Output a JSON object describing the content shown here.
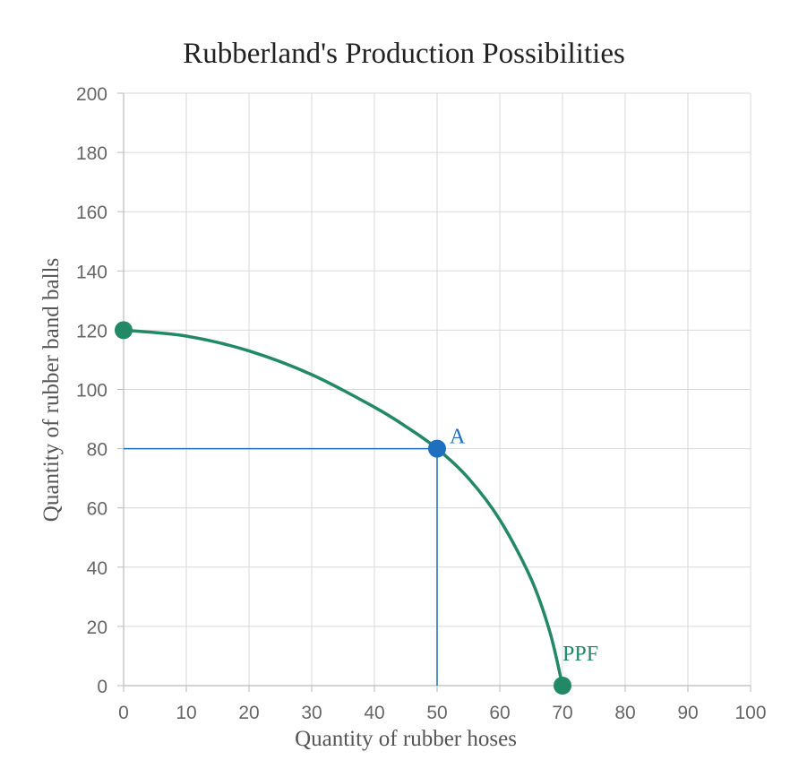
{
  "chart_data": {
    "type": "line",
    "title": "Rubberland's Production Possibilities",
    "xlabel": "Quantity of rubber hoses",
    "ylabel": "Quantity of rubber band balls",
    "xlim": [
      0,
      100
    ],
    "ylim": [
      0,
      200
    ],
    "x_ticks": [
      0,
      10,
      20,
      30,
      40,
      50,
      60,
      70,
      80,
      90,
      100
    ],
    "y_ticks": [
      0,
      20,
      40,
      60,
      80,
      100,
      120,
      140,
      160,
      180,
      200
    ],
    "grid": true,
    "series": [
      {
        "name": "PPF",
        "color": "#228866",
        "x": [
          0,
          10,
          20,
          30,
          40,
          45,
          50,
          55,
          60,
          65,
          68,
          70
        ],
        "y": [
          120,
          118,
          113,
          105,
          94,
          87.5,
          80,
          70,
          56,
          36,
          18,
          0
        ],
        "endpoints": [
          [
            0,
            120
          ],
          [
            70,
            0
          ]
        ]
      }
    ],
    "points": [
      {
        "label": "A",
        "x": 50,
        "y": 80,
        "color": "#1f6fbf",
        "guides": true
      }
    ],
    "annotations": [
      {
        "text": "PPF",
        "x": 70,
        "y": 0,
        "color": "#228866"
      }
    ]
  }
}
